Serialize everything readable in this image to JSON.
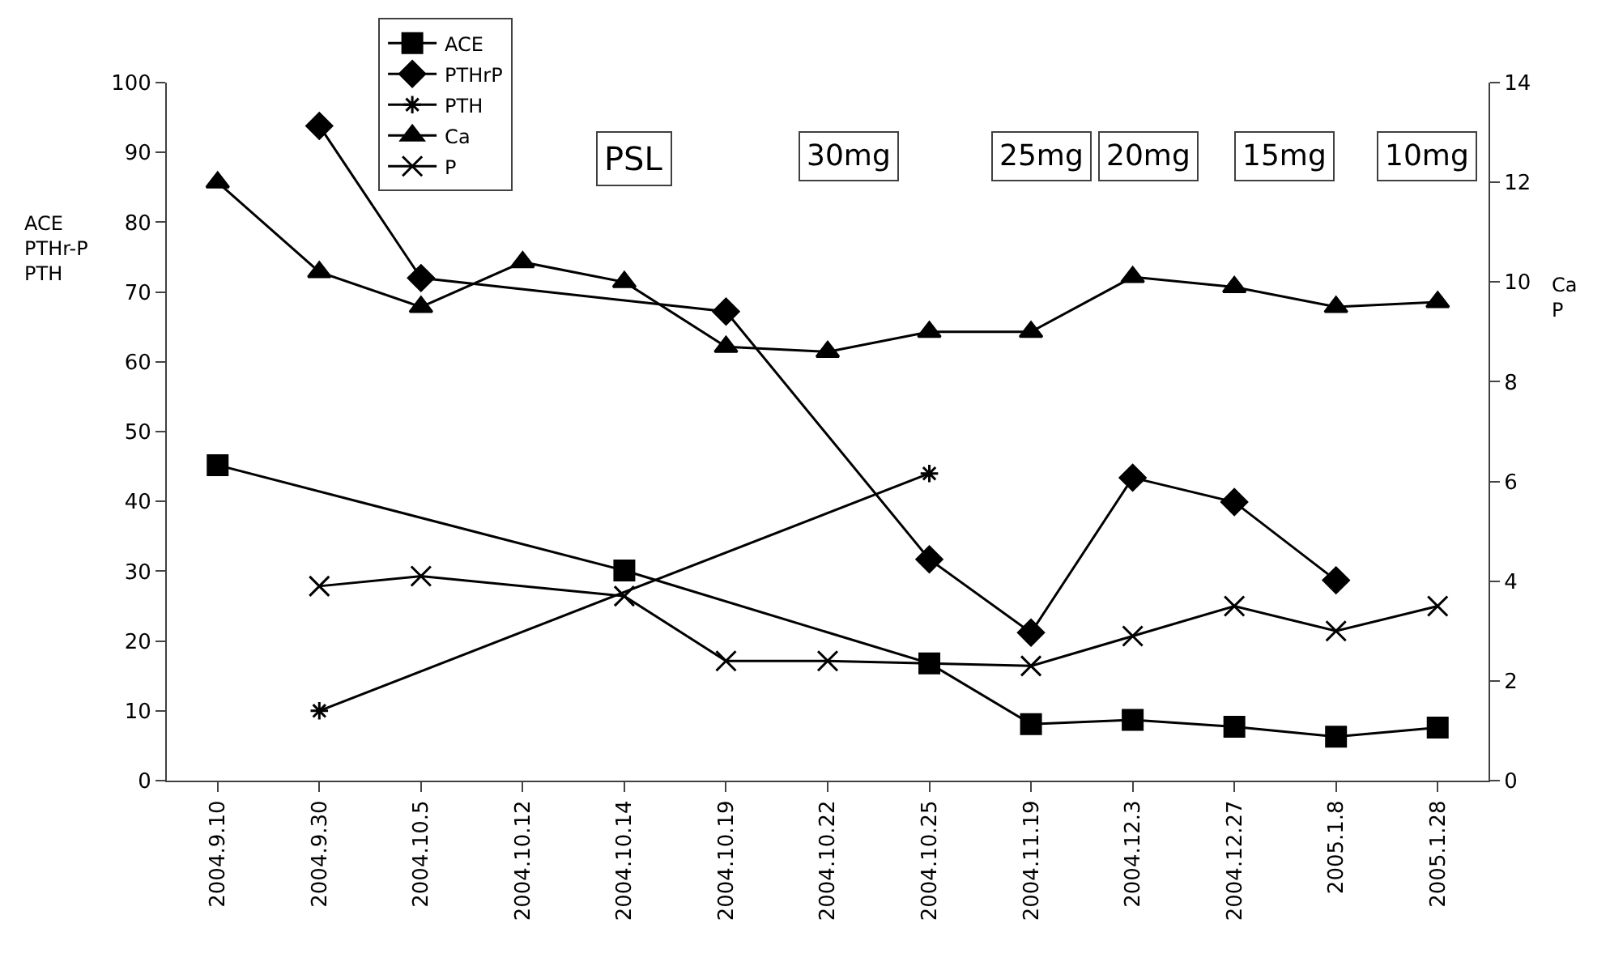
{
  "chart_data": {
    "type": "line",
    "ylabel": "ACE\nPTHr-P\nPTH",
    "y2label": "Ca\nP",
    "categories": [
      "2004.9.10",
      "2004.9.30",
      "2004.10.5",
      "2004.10.12",
      "2004.10.14",
      "2004.10.19",
      "2004.10.22",
      "2004.10.25",
      "2004.11.19",
      "2004.12.3",
      "2004.12.27",
      "2005.1.8",
      "2005.1.28"
    ],
    "series": [
      {
        "name": "ACE",
        "color": "#000000",
        "marker": "square",
        "values": [
          45.2,
          null,
          null,
          null,
          30.1,
          null,
          null,
          16.8,
          8.1,
          8.7,
          7.7,
          6.3,
          7.6
        ]
      },
      {
        "name": "PTHrP",
        "color": "#000000",
        "marker": "diamond",
        "values": [
          null,
          93.8,
          72.0,
          null,
          null,
          67.2,
          null,
          31.7,
          21.2,
          43.4,
          39.9,
          28.7,
          null
        ]
      },
      {
        "name": "PTH",
        "color": "#000000",
        "marker": "cross",
        "values": [
          null,
          10.0,
          null,
          null,
          null,
          null,
          null,
          44.0,
          null,
          null,
          null,
          null,
          null
        ]
      },
      {
        "name": "Ca",
        "color": "#000000",
        "marker": "triangle",
        "axis": "y2",
        "values": [
          12.0,
          10.2,
          9.5,
          10.4,
          10.0,
          8.7,
          8.6,
          9.0,
          9.0,
          10.1,
          9.9,
          9.5,
          9.6
        ]
      },
      {
        "name": "P",
        "color": "#000000",
        "marker": "cross",
        "axis": "y2",
        "values": [
          null,
          3.9,
          4.1,
          null,
          3.7,
          2.4,
          2.4,
          null,
          2.3,
          2.9,
          3.5,
          3.0,
          3.5
        ]
      }
    ],
    "ylim": [
      0,
      100
    ],
    "yticks": [
      0,
      10,
      20,
      30,
      40,
      50,
      60,
      70,
      80,
      90,
      100
    ],
    "y2lim": [
      0,
      14
    ],
    "y2ticks": [
      0,
      2,
      4,
      6,
      8,
      10,
      12,
      14
    ],
    "annotations": [
      "PSL",
      "30mg",
      "25mg",
      "20mg",
      "15mg",
      "10mg"
    ],
    "legend": "top left"
  }
}
